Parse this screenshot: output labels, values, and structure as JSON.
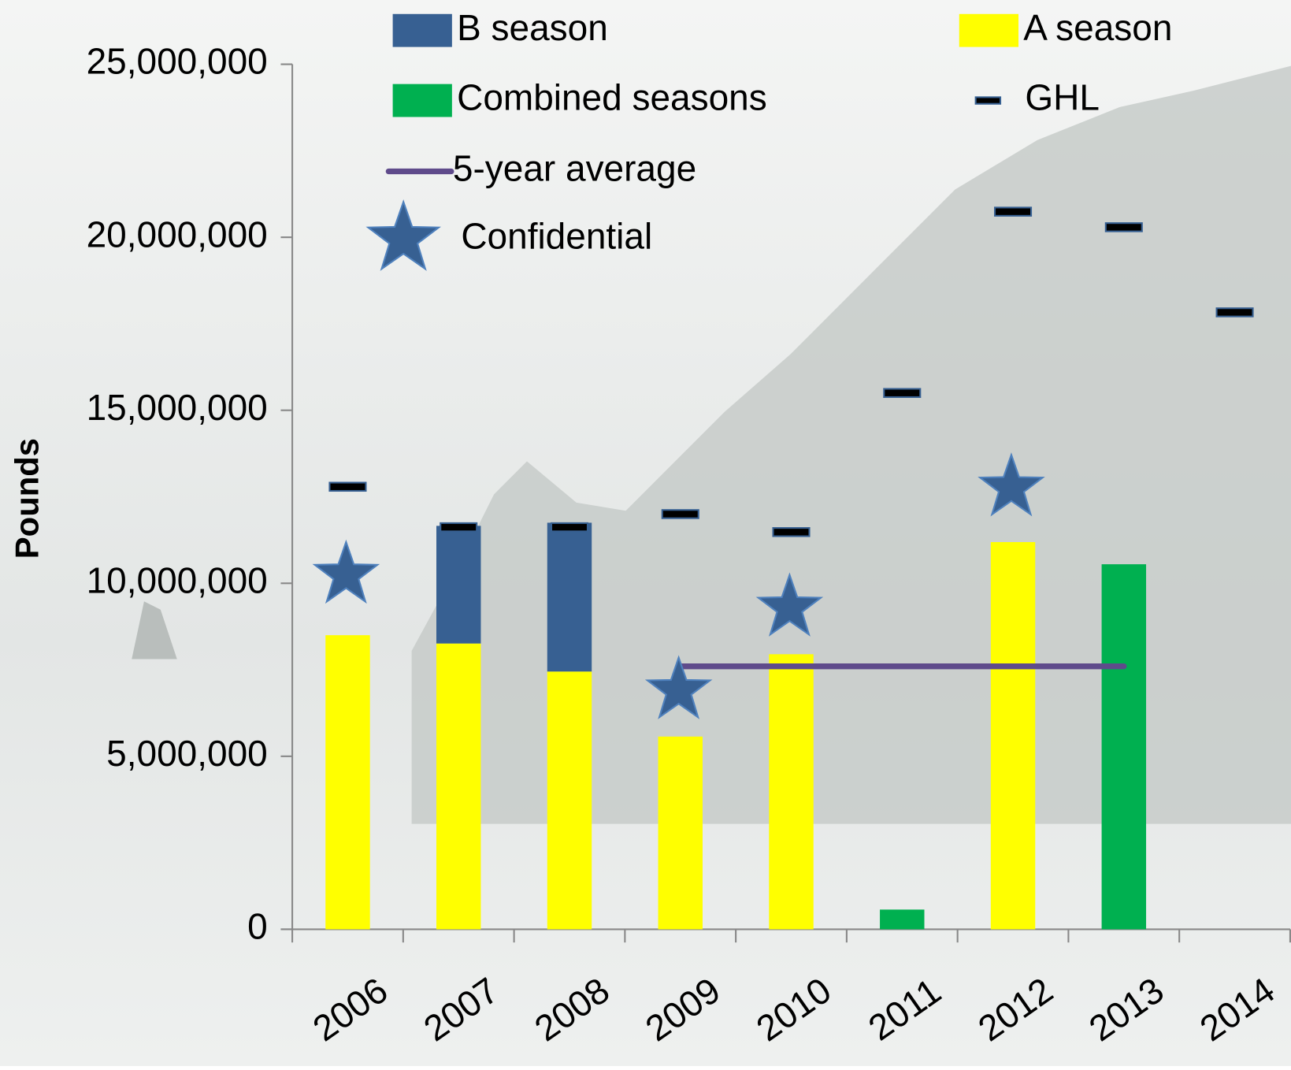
{
  "chart_data": {
    "type": "bar",
    "stacked": true,
    "y_label": "Pounds",
    "categories": [
      "2006",
      "2007",
      "2008",
      "2009",
      "2010",
      "2011",
      "2012",
      "2013",
      "2014"
    ],
    "series": [
      {
        "name": "A season",
        "type": "bar",
        "color": "#ffff00",
        "values": [
          8500000,
          8260000,
          7450000,
          5570000,
          7950000,
          null,
          11190000,
          null,
          null
        ]
      },
      {
        "name": "B season",
        "type": "bar",
        "color": "#376092",
        "values": [
          null,
          3400000,
          4300000,
          null,
          null,
          null,
          null,
          null,
          null
        ]
      },
      {
        "name": "Combined seasons",
        "type": "bar",
        "color": "#00b050",
        "values": [
          null,
          null,
          null,
          null,
          null,
          570000,
          null,
          10550000,
          null
        ]
      },
      {
        "name": "GHL",
        "type": "dash",
        "color": "#000000",
        "values": [
          12790000,
          11620000,
          11620000,
          12000000,
          11480000,
          15500000,
          20740000,
          20290000,
          17830000
        ]
      },
      {
        "name": "5-year average",
        "type": "line",
        "color": "#5f4b8b",
        "values": [
          null,
          null,
          null,
          7600000,
          7600000,
          7600000,
          7600000,
          7600000,
          null
        ]
      },
      {
        "name": "Confidential",
        "type": "star",
        "color": "#376092",
        "values": [
          10240000,
          null,
          null,
          6900000,
          9290000,
          null,
          12760000,
          null,
          null
        ]
      }
    ],
    "ylim": [
      0,
      25000000
    ],
    "yticks": [
      0,
      {
        "value": 5000000,
        "label": "5,000,000"
      },
      {
        "value": 10000000,
        "label": "10,000,000"
      },
      {
        "value": 15000000,
        "label": "15,000,000"
      },
      {
        "value": 20000000,
        "label": "20,000,000"
      },
      {
        "value": 25000000,
        "label": "25,000,000"
      }
    ]
  }
}
